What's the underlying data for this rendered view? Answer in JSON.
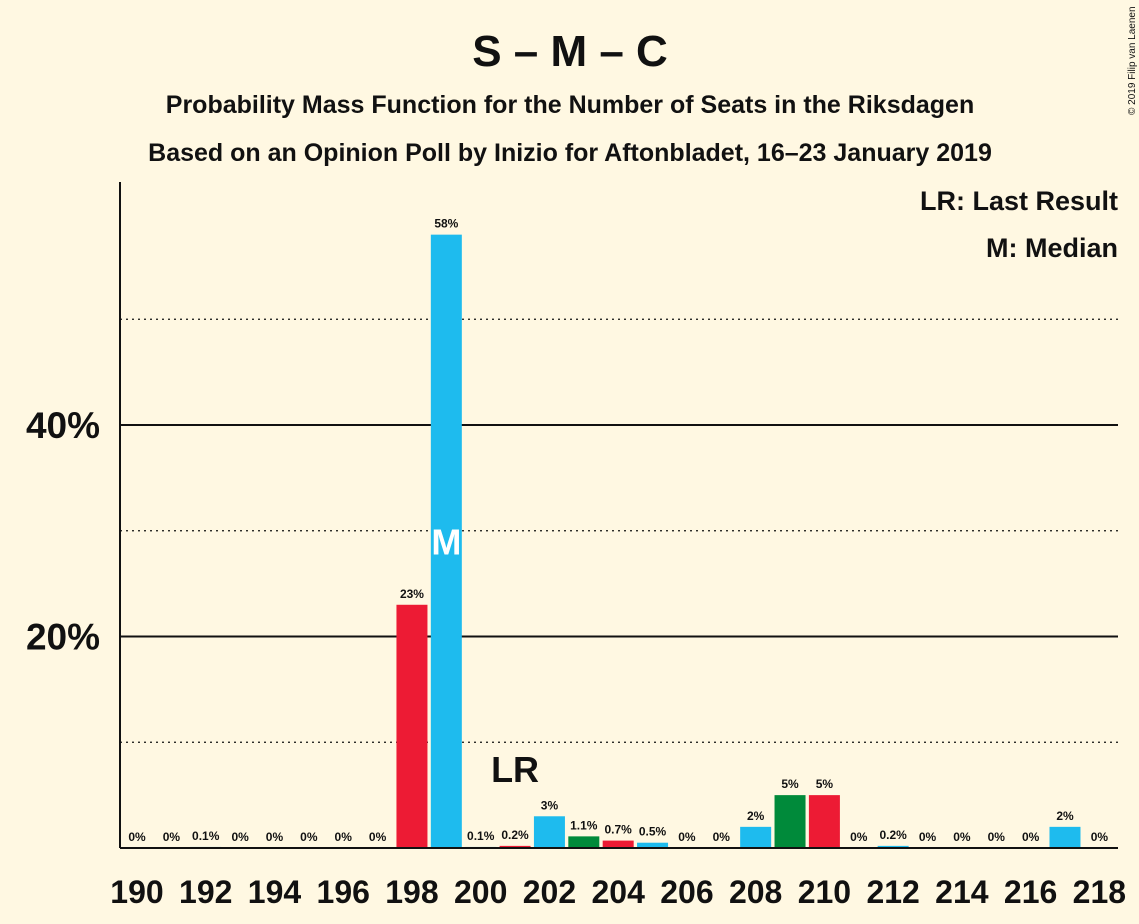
{
  "chart_data": {
    "type": "bar",
    "title": "S – M – C",
    "subtitle1": "Probability Mass Function for the Number of Seats in the Riksdagen",
    "subtitle2": "Based on an Opinion Poll by Inizio for Aftonbladet, 16–23 January 2019",
    "copyright": "© 2019 Filip van Laenen",
    "legend": [
      "LR: Last Result",
      "M: Median"
    ],
    "legend_position": "top-right",
    "grid": true,
    "ylim": [
      0,
      63
    ],
    "yticks": [
      20,
      40
    ],
    "ytick_labels": [
      "20%",
      "40%"
    ],
    "dotted_gridlines": [
      10,
      30,
      50
    ],
    "x": [
      190,
      191,
      192,
      193,
      194,
      195,
      196,
      197,
      198,
      199,
      200,
      201,
      202,
      203,
      204,
      205,
      206,
      207,
      208,
      209,
      210,
      211,
      212,
      213,
      214,
      215,
      216,
      217,
      218
    ],
    "x_tick_labels": [
      "190",
      "192",
      "194",
      "196",
      "198",
      "200",
      "202",
      "204",
      "206",
      "208",
      "210",
      "212",
      "214",
      "216",
      "218"
    ],
    "values": [
      0,
      0,
      0.1,
      0,
      0,
      0,
      0,
      0,
      23,
      58,
      0.1,
      0.2,
      3,
      1.1,
      0.7,
      0.5,
      0,
      0,
      2,
      5,
      5,
      0,
      0.2,
      0,
      0,
      0,
      0,
      2,
      0
    ],
    "value_labels": [
      "0%",
      "0%",
      "0.1%",
      "0%",
      "0%",
      "0%",
      "0%",
      "0%",
      "23%",
      "58%",
      "0.1%",
      "0.2%",
      "3%",
      "1.1%",
      "0.7%",
      "0.5%",
      "0%",
      "0%",
      "2%",
      "5%",
      "5%",
      "0%",
      "0.2%",
      "0%",
      "0%",
      "0%",
      "0%",
      "2%",
      "0%"
    ],
    "colors": [
      "#1ebbee",
      "#1ebbee",
      "#1ebbee",
      "#1ebbee",
      "#1ebbee",
      "#1ebbee",
      "#1ebbee",
      "#1ebbee",
      "#ed1b34",
      "#1ebbee",
      "#1ebbee",
      "#ed1b34",
      "#1ebbee",
      "#008a3a",
      "#ed1b34",
      "#1ebbee",
      "#1ebbee",
      "#1ebbee",
      "#1ebbee",
      "#008a3a",
      "#ed1b34",
      "#1ebbee",
      "#1ebbee",
      "#1ebbee",
      "#1ebbee",
      "#1ebbee",
      "#1ebbee",
      "#1ebbee",
      "#1ebbee"
    ],
    "last_result": {
      "x": 201,
      "label": "LR"
    },
    "median": {
      "x": 199,
      "label": "M"
    }
  }
}
